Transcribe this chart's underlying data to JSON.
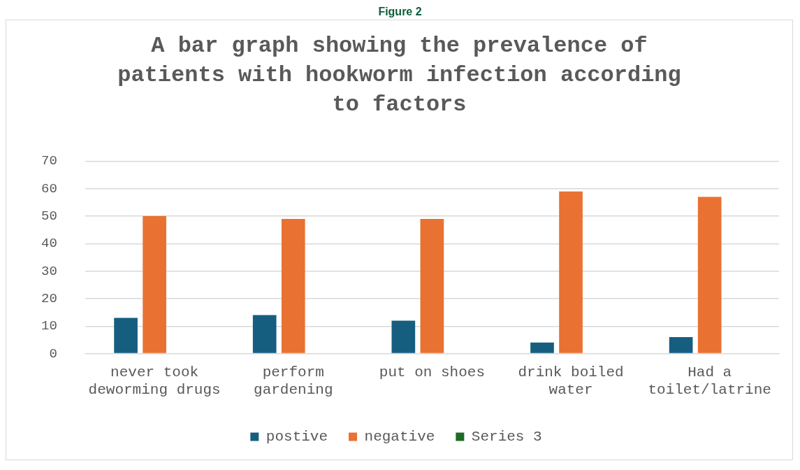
{
  "chart_data": {
    "type": "bar",
    "title": "A bar graph showing the prevalence of patients with hookworm infection according to factors",
    "annotations": [
      "Figure 2"
    ],
    "categories": [
      "never took deworming drugs",
      "perform gardening",
      "put on shoes",
      "drink boiled water",
      "Had a toilet/latrine"
    ],
    "series": [
      {
        "name": "postive",
        "color": "#155e80",
        "values": [
          13,
          14,
          12,
          4,
          6
        ]
      },
      {
        "name": "negative",
        "color": "#e97132",
        "values": [
          50,
          49,
          49,
          59,
          57
        ]
      },
      {
        "name": "Series 3",
        "color": "#1e6b26",
        "values": [
          null,
          null,
          null,
          null,
          null
        ]
      }
    ],
    "ylim": [
      0,
      70
    ],
    "yticks": [
      0,
      10,
      20,
      30,
      40,
      50,
      60,
      70
    ],
    "grid": "y",
    "legend": "bottom"
  }
}
